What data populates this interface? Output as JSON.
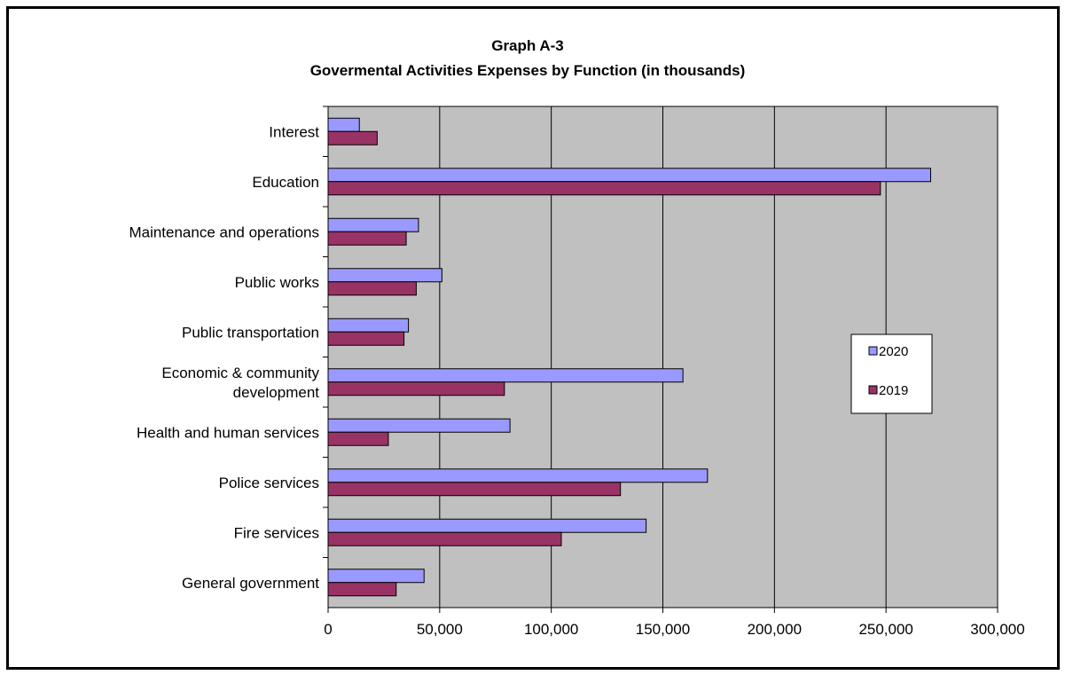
{
  "chart_data": {
    "type": "bar",
    "orientation": "horizontal",
    "title": "Graph A-3",
    "subtitle": "Govermental Activities Expenses by Function (in thousands)",
    "xlabel": "",
    "ylabel": "",
    "xlim": [
      0,
      300000
    ],
    "xticks": [
      "0",
      "50,000",
      "100,000",
      "150,000",
      "200,000",
      "250,000",
      "300,000"
    ],
    "grid": true,
    "legend_position": "right",
    "categories": [
      [
        "Interest"
      ],
      [
        "Education"
      ],
      [
        "Maintenance and operations"
      ],
      [
        "Public works"
      ],
      [
        "Public transportation"
      ],
      [
        "Economic & community",
        "development"
      ],
      [
        "Health and human services"
      ],
      [
        "Police services"
      ],
      [
        "Fire services"
      ],
      [
        "General government"
      ]
    ],
    "series": [
      {
        "name": "2020",
        "color": "#9999ff",
        "values": [
          14000,
          270000,
          40500,
          51000,
          36000,
          159000,
          81500,
          170000,
          142500,
          43000
        ]
      },
      {
        "name": "2019",
        "color": "#993366",
        "values": [
          22000,
          247500,
          35000,
          39500,
          34000,
          79000,
          27000,
          131000,
          104500,
          30500
        ]
      }
    ],
    "colors": {
      "plot_background": "#c0c0c0",
      "gridline": "#000000"
    }
  }
}
